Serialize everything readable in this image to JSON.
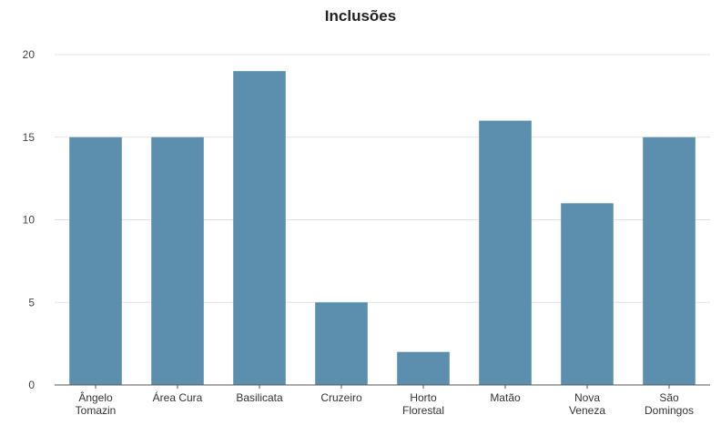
{
  "chart_data": {
    "type": "bar",
    "title": "Inclusões",
    "xlabel": "",
    "ylabel": "",
    "categories": [
      [
        "Ângelo",
        "Tomazin"
      ],
      [
        "Área Cura"
      ],
      [
        "Basilicata"
      ],
      [
        "Cruzeiro"
      ],
      [
        "Horto",
        "Florestal"
      ],
      [
        "Matão"
      ],
      [
        "Nova",
        "Veneza"
      ],
      [
        "São",
        "Domingos"
      ]
    ],
    "values": [
      15,
      15,
      19,
      5,
      2,
      16,
      11,
      15
    ],
    "ylim": [
      0,
      20
    ],
    "yticks": [
      "0",
      "5",
      "10",
      "15",
      "20"
    ],
    "grid": true,
    "legend": "none",
    "bar_color": "#5b8fad",
    "grid_color": "#e3e3e3",
    "axis_color": "#555555"
  }
}
